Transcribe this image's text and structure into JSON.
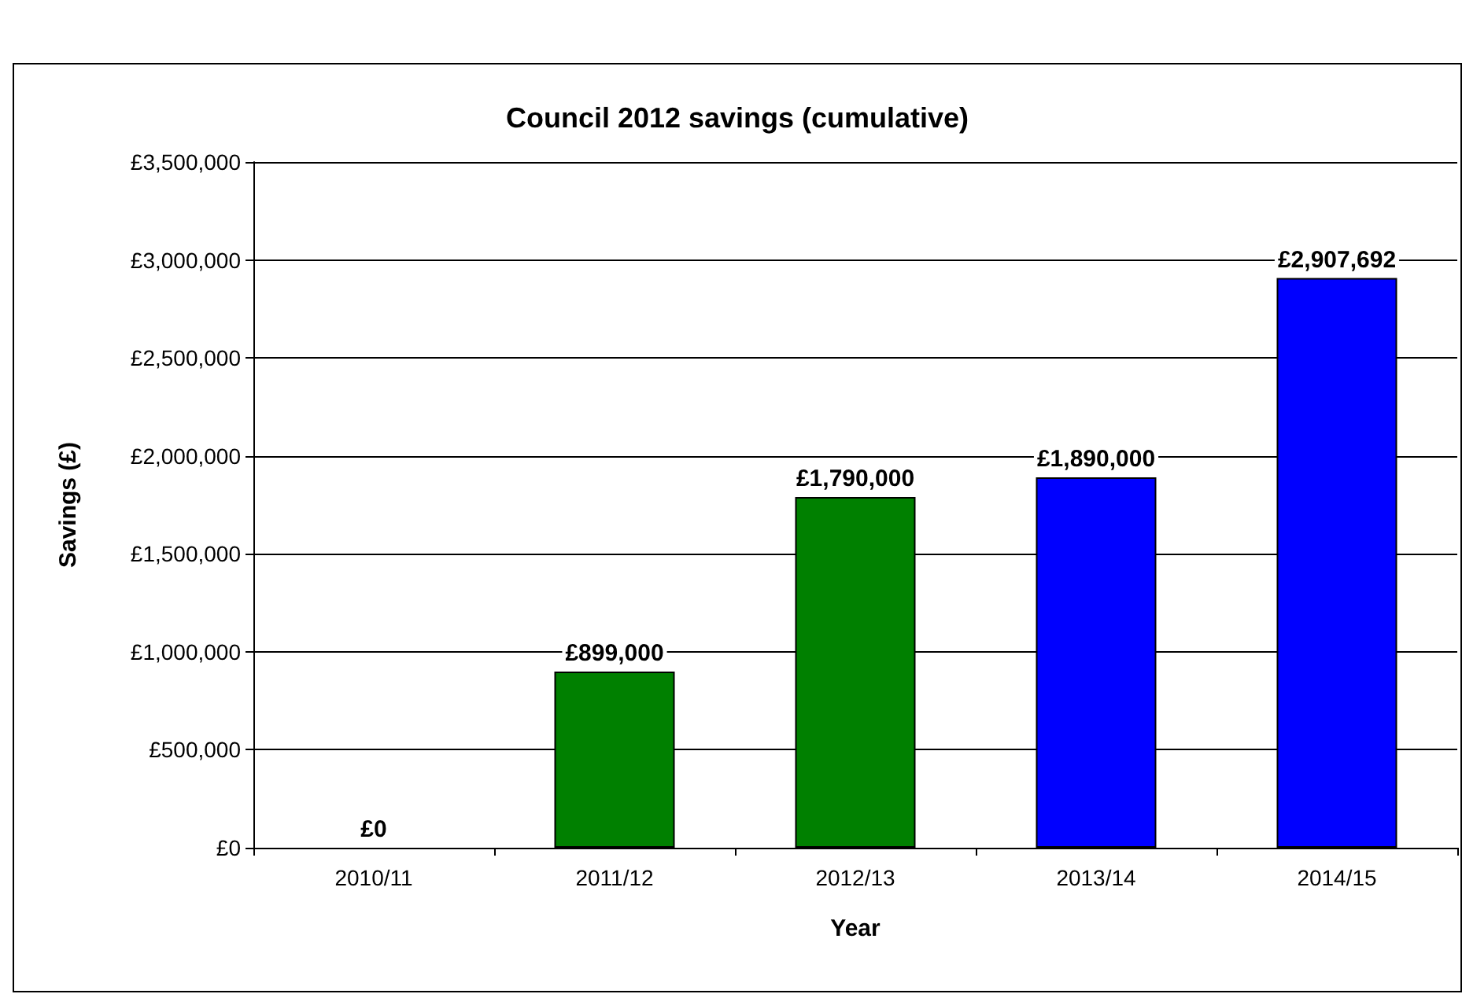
{
  "chart_data": {
    "type": "bar",
    "title": "Council 2012 savings (cumulative)",
    "xlabel": "Year",
    "ylabel": "Savings (£)",
    "categories": [
      "2010/11",
      "2011/12",
      "2012/13",
      "2013/14",
      "2014/15"
    ],
    "values": [
      0,
      899000,
      1790000,
      1890000,
      2907692
    ],
    "colors": [
      null,
      "#008000",
      "#008000",
      "#0000ff",
      "#0000ff"
    ],
    "value_labels": [
      "£0",
      "£899,000",
      "£1,790,000",
      "£1,890,000",
      "£2,907,692"
    ],
    "ylim": [
      0,
      3500000
    ],
    "yticks": [
      {
        "value": 0,
        "label": "£0"
      },
      {
        "value": 500000,
        "label": "£500,000"
      },
      {
        "value": 1000000,
        "label": "£1,000,000"
      },
      {
        "value": 1500000,
        "label": "£1,500,000"
      },
      {
        "value": 2000000,
        "label": "£2,000,000"
      },
      {
        "value": 2500000,
        "label": "£2,500,000"
      },
      {
        "value": 3000000,
        "label": "£3,000,000"
      },
      {
        "value": 3500000,
        "label": "£3,500,000"
      }
    ],
    "grid": "y"
  }
}
